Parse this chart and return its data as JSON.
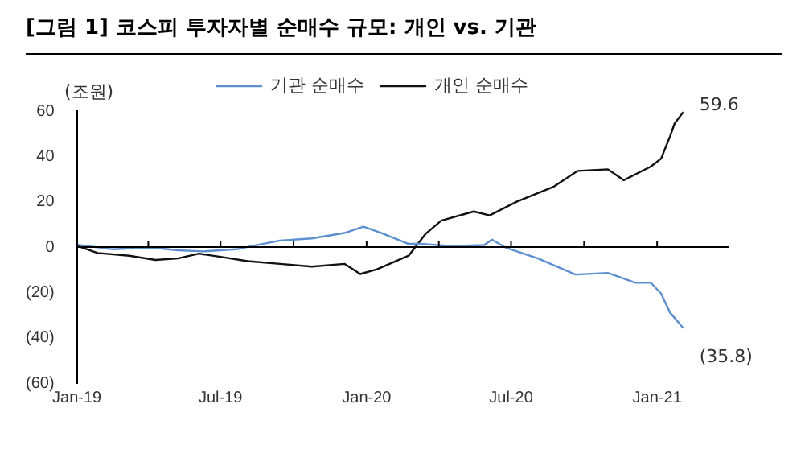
{
  "chart_data": {
    "type": "line",
    "title": "[그림 1] 코스피 투자자별 순매수 규모: 개인 vs. 기관",
    "ylabel": "(조원)",
    "x": [
      "2019-01-02",
      "2019-02-16",
      "2019-04-04",
      "2019-05-08",
      "2019-06-10",
      "2019-07-21",
      "2019-08-10",
      "2019-09-14",
      "2019-10-24",
      "2019-12-04",
      "2019-12-28",
      "2020-01-20",
      "2020-02-23",
      "2020-03-08",
      "2020-04-17",
      "2020-05-28",
      "2020-06-07",
      "2020-06-24",
      "2020-08-04",
      "2020-09-20",
      "2020-10-31",
      "2020-12-04",
      "2020-12-24",
      "2021-01-06",
      "2021-01-17",
      "2021-02-03"
    ],
    "series": [
      {
        "name": "기관 순매수",
        "color": "#5b8fd0",
        "values": [
          1,
          -1,
          -0.2,
          -1.4,
          -1.9,
          -1,
          0.5,
          2.9,
          3.8,
          6.2,
          9,
          6.2,
          1.4,
          1.4,
          0.5,
          0.9,
          3.3,
          -0.2,
          -5,
          -12.1,
          -11.4,
          -15.7,
          -15.7,
          -20.5,
          -28.8,
          -35.8
        ]
      },
      {
        "name": "개인 순매수",
        "color": "#111111",
        "x": [
          "2019-01-02",
          "2019-01-27",
          "2019-03-08",
          "2019-04-10",
          "2019-05-08",
          "2019-06-04",
          "2019-07-01",
          "2019-08-04",
          "2019-09-14",
          "2019-10-24",
          "2019-12-04",
          "2019-12-24",
          "2020-01-14",
          "2020-02-10",
          "2020-02-23",
          "2020-03-15",
          "2020-04-04",
          "2020-05-15",
          "2020-06-04",
          "2020-07-08",
          "2020-08-24",
          "2020-09-23",
          "2020-10-31",
          "2020-11-20",
          "2020-12-24",
          "2021-01-06",
          "2021-01-17",
          "2021-01-23",
          "2021-02-03"
        ],
        "values": [
          0.5,
          -2.6,
          -3.8,
          -5.7,
          -5,
          -2.9,
          -4.3,
          -6.2,
          -7.4,
          -8.6,
          -7.4,
          -11.9,
          -9.8,
          -5.7,
          -3.8,
          5.7,
          11.7,
          15.7,
          14,
          20,
          26.7,
          33.6,
          34.3,
          29.5,
          35.5,
          39,
          48.6,
          54.5,
          59.6
        ]
      }
    ],
    "annotations": [
      {
        "text": "59.6",
        "x": "2021-02-03",
        "y": 59.6
      },
      {
        "text": "(35.8)",
        "x": "2021-02-03",
        "y": -35.8
      }
    ],
    "xlim": [
      "2019-01-01",
      "2021-04-01"
    ],
    "xticks": [
      {
        "value": "2019-01-01",
        "label": "Jan-19"
      },
      {
        "value": "2019-04-01",
        "label": null
      },
      {
        "value": "2019-07-01",
        "label": "Jul-19"
      },
      {
        "value": "2019-10-01",
        "label": null
      },
      {
        "value": "2020-01-01",
        "label": "Jan-20"
      },
      {
        "value": "2020-04-01",
        "label": null
      },
      {
        "value": "2020-07-01",
        "label": "Jul-20"
      },
      {
        "value": "2020-10-01",
        "label": null
      },
      {
        "value": "2021-01-01",
        "label": "Jan-21"
      }
    ],
    "ylim": [
      -60,
      60
    ],
    "yticks": [
      {
        "value": -60,
        "label": "(60)"
      },
      {
        "value": -40,
        "label": "(40)"
      },
      {
        "value": -20,
        "label": "(20)"
      },
      0,
      20,
      40,
      60
    ],
    "ref_lines": [
      {
        "axis": "y",
        "value": 0,
        "color": "#000000"
      }
    ],
    "grid": false,
    "legend": "top",
    "marker": "none",
    "line_style": "solid"
  }
}
